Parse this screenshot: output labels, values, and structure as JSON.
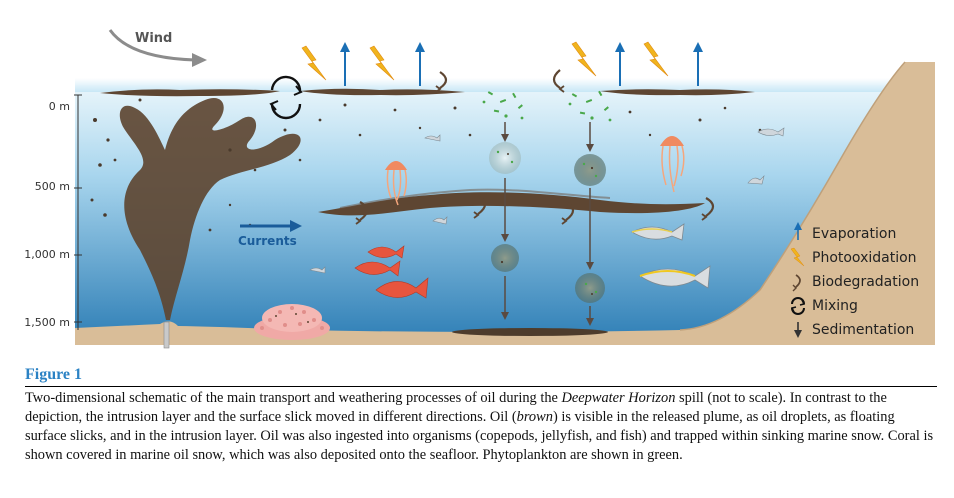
{
  "diagram": {
    "wind_label": "Wind",
    "currents_label": "Currents",
    "depth_labels": [
      "0 m",
      "500 m",
      "1,000 m",
      "1,500 m"
    ],
    "legend": [
      {
        "icon": "up-arrow-icon",
        "label": "Evaporation"
      },
      {
        "icon": "lightning-icon",
        "label": "Photooxidation"
      },
      {
        "icon": "curl-arrow-icon",
        "label": "Biodegradation"
      },
      {
        "icon": "circular-arrows-icon",
        "label": "Mixing"
      },
      {
        "icon": "down-arrow-icon",
        "label": "Sedimentation"
      }
    ],
    "colors": {
      "oil": "#5a4530",
      "water_top": "#d8eef8",
      "water_bottom": "#2d7fb8",
      "seafloor": "#d9bd98",
      "evaporation": "#1a6fb5",
      "photooxidation": "#f0b41e",
      "phytoplankton": "#4aa84a",
      "label_blue": "#1a5c9a"
    }
  },
  "figure": {
    "title": "Figure 1",
    "caption_parts": {
      "p1": "Two-dimensional schematic of the main transport and weathering processes of oil during the ",
      "p1_em": "Deepwater Horizon",
      "p2": " spill (not to scale). In contrast to the depiction, the intrusion layer and the surface slick moved in different directions. Oil (",
      "p2_em": "brown",
      "p3": ") is visible in the released plume, as oil droplets, as floating surface slicks, and in the intrusion layer. Oil was also ingested into organisms (copepods, jellyfish, and fish) and trapped within sinking marine snow. Coral is shown covered in marine oil snow, which was also deposited onto the seafloor. Phytoplankton are shown in green."
    }
  }
}
